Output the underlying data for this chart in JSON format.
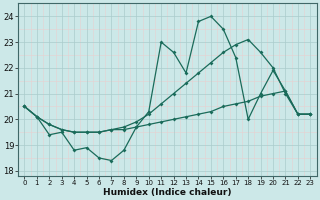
{
  "xlabel": "Humidex (Indice chaleur)",
  "x_values": [
    0,
    1,
    2,
    3,
    4,
    5,
    6,
    7,
    8,
    9,
    10,
    11,
    12,
    13,
    14,
    15,
    16,
    17,
    18,
    19,
    20,
    21,
    22,
    23
  ],
  "line_main": [
    20.5,
    20.1,
    19.4,
    19.5,
    18.8,
    18.9,
    18.5,
    18.4,
    18.8,
    19.7,
    20.3,
    23.0,
    22.6,
    21.8,
    23.8,
    24.0,
    23.5,
    22.4,
    20.0,
    21.0,
    21.9,
    21.1,
    20.2,
    20.2
  ],
  "line_trend_lo": [
    20.5,
    20.1,
    19.8,
    19.6,
    19.5,
    19.5,
    19.5,
    19.6,
    19.6,
    19.7,
    19.8,
    19.9,
    20.0,
    20.1,
    20.2,
    20.3,
    20.5,
    20.6,
    20.7,
    20.9,
    21.0,
    21.1,
    20.2,
    20.2
  ],
  "line_trend_hi": [
    20.5,
    20.1,
    19.8,
    19.6,
    19.5,
    19.5,
    19.5,
    19.6,
    19.7,
    19.9,
    20.2,
    20.6,
    21.0,
    21.4,
    21.8,
    22.2,
    22.6,
    22.9,
    23.1,
    22.6,
    22.0,
    21.0,
    20.2,
    20.2
  ],
  "color_line": "#1a6b5a",
  "bg_color": "#cce8e8",
  "grid_major_color": "#aacccc",
  "grid_minor_color": "#ddecea",
  "ylim": [
    17.8,
    24.5
  ],
  "yticks": [
    18,
    19,
    20,
    21,
    22,
    23,
    24
  ],
  "marker": "D",
  "markersize": 2.0,
  "linewidth": 0.9
}
